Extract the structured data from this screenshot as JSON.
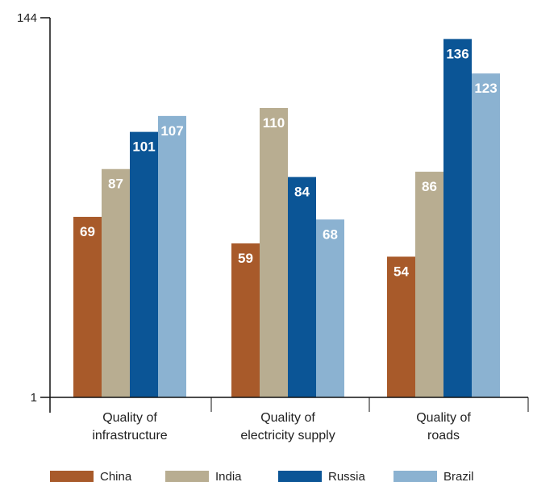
{
  "chart_data": {
    "type": "bar",
    "categories": [
      [
        "Quality of",
        "infrastructure"
      ],
      [
        "Quality of",
        "electricity supply"
      ],
      [
        "Quality of",
        "roads"
      ]
    ],
    "series": [
      {
        "name": "China",
        "color": "#a85a2a",
        "values": [
          69,
          59,
          54
        ]
      },
      {
        "name": "India",
        "color": "#b8ad91",
        "values": [
          87,
          110,
          86
        ]
      },
      {
        "name": "Russia",
        "color": "#0b5596",
        "values": [
          101,
          84,
          136
        ]
      },
      {
        "name": "Brazil",
        "color": "#8bb2d1",
        "values": [
          107,
          68,
          123
        ]
      }
    ],
    "yticks": [
      1,
      144
    ],
    "ylim": [
      1,
      144
    ],
    "legend_position": "bottom",
    "value_labels": true
  }
}
